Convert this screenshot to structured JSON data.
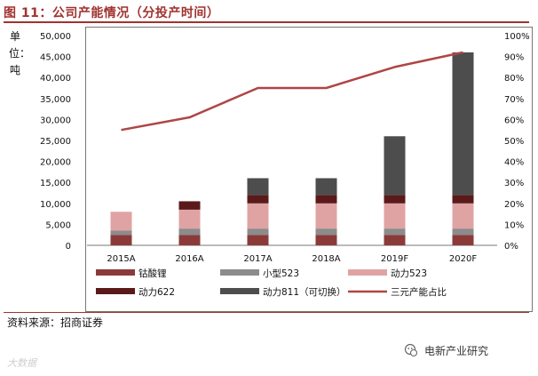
{
  "header": {
    "title": "图 11：公司产能情况（分投产时间）"
  },
  "unit_label": "单位：吨",
  "source": "资料来源：招商证券",
  "footer": {
    "left_watermark": "大数据",
    "right_account": "电新产业研究"
  },
  "colors": {
    "title": "#a0332f",
    "cobalt": "#8b3a3a",
    "small523": "#8c8c8c",
    "power523": "#e0a3a3",
    "power622": "#5b1a1a",
    "power811": "#4d4d4d",
    "ternary": "#b04545"
  },
  "chart_data": {
    "type": "bar",
    "stacked": true,
    "title": "公司产能情况（分投产时间）",
    "categories": [
      "2015A",
      "2016A",
      "2017A",
      "2018A",
      "2019F",
      "2020F"
    ],
    "ylabel": "单位：吨",
    "ylim": [
      0,
      50000
    ],
    "yticks": [
      "0",
      "5,000",
      "10,000",
      "15,000",
      "20,000",
      "25,000",
      "30,000",
      "35,000",
      "40,000",
      "45,000",
      "50,000"
    ],
    "y2lim": [
      0,
      100
    ],
    "y2ticks": [
      "0%",
      "10%",
      "20%",
      "30%",
      "40%",
      "50%",
      "60%",
      "70%",
      "80%",
      "90%",
      "100%"
    ],
    "series": [
      {
        "name": "钴酸锂",
        "values": [
          2500,
          2500,
          2500,
          2500,
          2500,
          2500
        ]
      },
      {
        "name": "小型523",
        "values": [
          1000,
          1500,
          1500,
          1500,
          1500,
          1500
        ]
      },
      {
        "name": "动力523",
        "values": [
          4500,
          4500,
          6000,
          6000,
          6000,
          6000
        ]
      },
      {
        "name": "动力622",
        "values": [
          0,
          2000,
          2000,
          2000,
          2000,
          2000
        ]
      },
      {
        "name": "动力811（可切换）",
        "values": [
          0,
          0,
          4000,
          4000,
          14000,
          34000
        ]
      }
    ],
    "line_series": {
      "name": "三元产能占比",
      "axis": "right",
      "values": [
        55,
        61,
        75,
        75,
        85,
        92
      ]
    },
    "legend_position": "bottom"
  }
}
